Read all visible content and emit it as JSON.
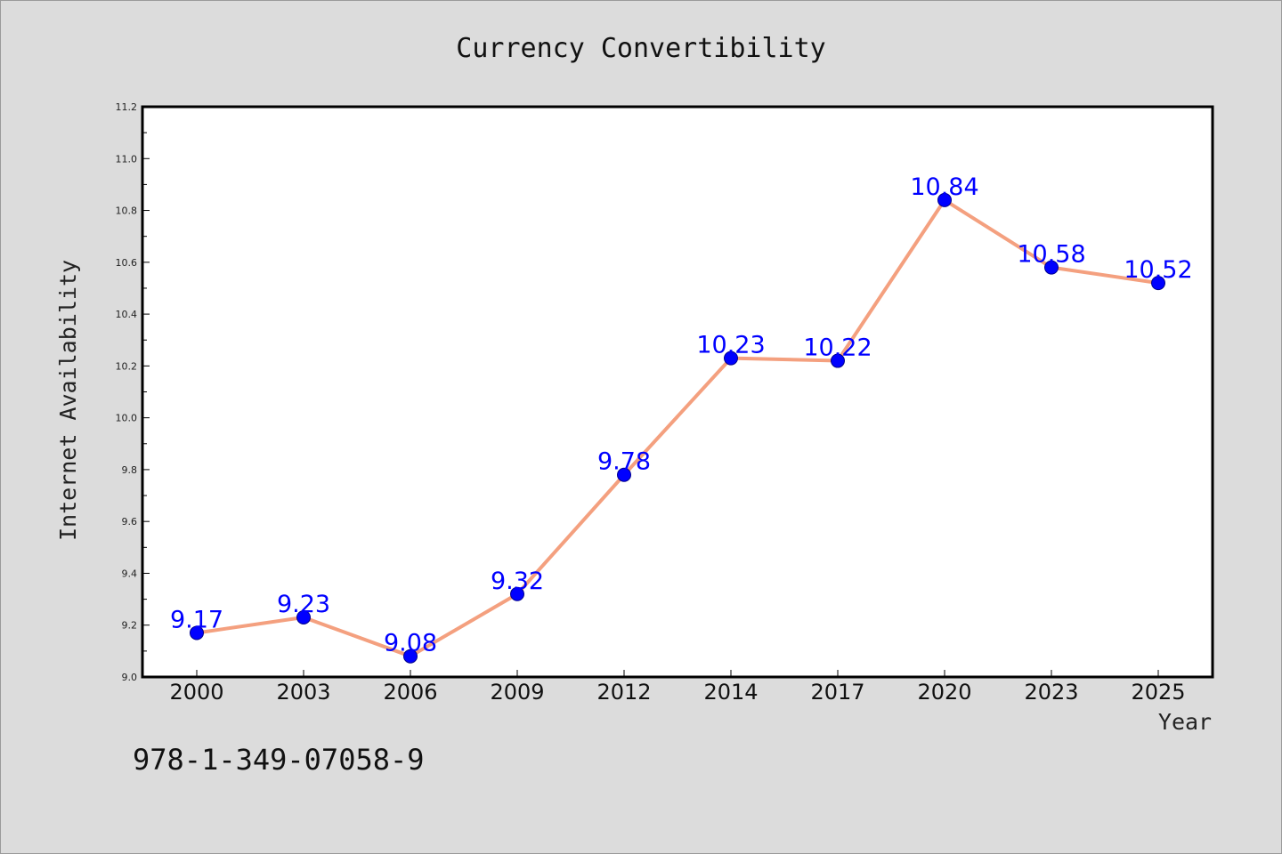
{
  "chart_data": {
    "type": "line",
    "title": "Currency Convertibility",
    "xlabel": "Year",
    "ylabel": "Internet Availability",
    "categories": [
      "2000",
      "2003",
      "2006",
      "2009",
      "2012",
      "2014",
      "2017",
      "2020",
      "2023",
      "2025"
    ],
    "series": [
      {
        "values": [
          9.17,
          9.23,
          9.08,
          9.32,
          9.78,
          10.23,
          10.22,
          10.84,
          10.58,
          10.52
        ]
      }
    ],
    "data_labels": [
      "9.17",
      "9.23",
      "9.08",
      "9.32",
      "9.78",
      "10.23",
      "10.22",
      "10.84",
      "10.58",
      "10.52"
    ],
    "ylim": [
      9.0,
      11.2
    ],
    "yticks": [
      "9.0",
      "9.2",
      "9.4",
      "9.6",
      "9.8",
      "10.0",
      "10.2",
      "10.4",
      "10.6",
      "10.8",
      "11.0",
      "11.2"
    ],
    "grid": false,
    "colors": {
      "line": "#f4a07f",
      "marker": "#0000ff",
      "label": "#0000ff",
      "plot_background": "#ffffff",
      "figure_background": "#dcdcdc"
    }
  },
  "footer": {
    "text": "978-1-349-07058-9"
  }
}
